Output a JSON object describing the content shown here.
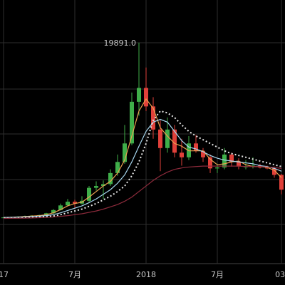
{
  "chart_data": {
    "type": "candlestick",
    "categories": [
      "17",
      null,
      null,
      null,
      null,
      null,
      null,
      null,
      null,
      null,
      "7月",
      null,
      null,
      null,
      null,
      null,
      null,
      null,
      null,
      null,
      "2018",
      null,
      null,
      null,
      null,
      null,
      null,
      null,
      null,
      null,
      "7月",
      null,
      null,
      null,
      null,
      null,
      null,
      null,
      null,
      "03:"
    ],
    "open": [
      980,
      1000,
      1050,
      1100,
      1150,
      1200,
      1250,
      1450,
      1800,
      2300,
      2700,
      2500,
      2800,
      4200,
      4400,
      4600,
      5800,
      7000,
      9000,
      13500,
      15000,
      13000,
      10500,
      8500,
      10500,
      8000,
      7500,
      9000,
      8200,
      7500,
      6300,
      6400,
      7800,
      7000,
      6500,
      6500,
      6600,
      6400,
      6300,
      5600
    ],
    "high": [
      1020,
      1080,
      1130,
      1200,
      1250,
      1300,
      1500,
      1900,
      2500,
      3000,
      2900,
      3300,
      4400,
      4900,
      5000,
      6200,
      7800,
      11000,
      14500,
      19891,
      17200,
      14000,
      11500,
      11800,
      11000,
      9500,
      9800,
      9900,
      8500,
      7800,
      6800,
      8500,
      8000,
      7400,
      7200,
      7500,
      6800,
      6600,
      6500,
      5700
    ],
    "low": [
      950,
      980,
      1020,
      1060,
      1100,
      1150,
      1220,
      1400,
      1750,
      2200,
      2000,
      2400,
      2700,
      3900,
      3000,
      4400,
      5500,
      6800,
      8800,
      12000,
      12500,
      9500,
      6000,
      8000,
      7500,
      6600,
      7200,
      8000,
      7000,
      5800,
      5800,
      6200,
      6500,
      6200,
      6200,
      6300,
      6300,
      6200,
      5300,
      3500
    ],
    "close": [
      1000,
      1050,
      1100,
      1150,
      1200,
      1250,
      1450,
      1800,
      2300,
      2700,
      2500,
      2800,
      4200,
      4400,
      4600,
      5800,
      7000,
      9000,
      13500,
      15000,
      13000,
      10500,
      8500,
      10500,
      8000,
      7500,
      9000,
      8200,
      7500,
      6300,
      6400,
      7800,
      7000,
      6500,
      6500,
      6600,
      6400,
      6300,
      5600,
      4000
    ],
    "peak_label": "19891.0",
    "up_color": "#3fae49",
    "down_color": "#e0403a",
    "lines": [
      {
        "color": "#eaa050",
        "dash": false,
        "values": [
          1000,
          1020,
          1050,
          1100,
          1150,
          1200,
          1300,
          1500,
          1850,
          2250,
          2500,
          2650,
          3200,
          3800,
          4400,
          4900,
          5800,
          7200,
          9800,
          12500,
          13800,
          12800,
          10700,
          9800,
          9000,
          8700,
          8200,
          8200,
          8200,
          7300,
          6700,
          6800,
          7000,
          7100,
          6700,
          6500,
          6500,
          6400,
          6100,
          5300
        ]
      },
      {
        "color": "#a8d8f0",
        "dash": false,
        "values": [
          1000,
          1010,
          1030,
          1060,
          1100,
          1140,
          1200,
          1300,
          1500,
          1750,
          2000,
          2250,
          2600,
          3000,
          3500,
          4000,
          4700,
          5600,
          7000,
          8700,
          10300,
          11300,
          11600,
          11300,
          10300,
          9300,
          8600,
          8400,
          8100,
          7700,
          7400,
          7200,
          7100,
          7000,
          6900,
          6800,
          6600,
          6500,
          6300,
          6000
        ]
      },
      {
        "color": "#e6e6e6",
        "dash": true,
        "values": [
          950,
          960,
          970,
          990,
          1010,
          1030,
          1080,
          1150,
          1300,
          1500,
          1700,
          1900,
          2200,
          2500,
          2900,
          3300,
          3800,
          4400,
          5500,
          7000,
          9000,
          11500,
          12500,
          12300,
          11800,
          11000,
          10300,
          9800,
          9400,
          9000,
          8600,
          8200,
          7900,
          7700,
          7500,
          7300,
          7100,
          6900,
          6700,
          6500
        ]
      },
      {
        "color": "#8e2b3c",
        "dash": false,
        "values": [
          900,
          910,
          920,
          930,
          950,
          970,
          1000,
          1050,
          1120,
          1200,
          1300,
          1400,
          1550,
          1700,
          1900,
          2150,
          2400,
          2750,
          3200,
          3800,
          4400,
          5000,
          5500,
          5900,
          6200,
          6350,
          6450,
          6500,
          6550,
          6550,
          6550,
          6550,
          6550,
          6550,
          6500,
          6500,
          6500,
          6450,
          6400,
          6300
        ]
      }
    ],
    "ylim": [
      -6300,
      24500
    ]
  }
}
